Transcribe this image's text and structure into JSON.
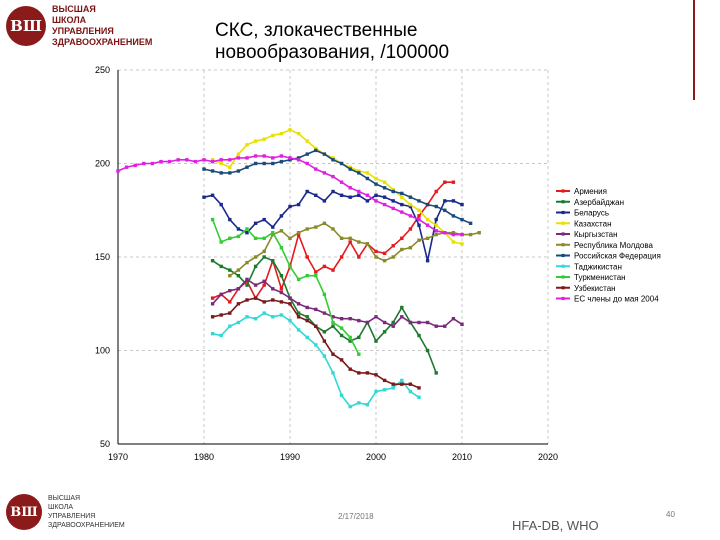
{
  "header": {
    "logo_mark": "ВШ",
    "logo_lines": [
      "ВЫСШАЯ",
      "ШКОЛА",
      "УПРАВЛЕНИЯ",
      "ЗДРАВООХРАНЕНИЕМ"
    ]
  },
  "footer": {
    "logo_mark": "ВШ",
    "logo_lines": [
      "ВЫСШАЯ",
      "ШКОЛА",
      "УПРАВЛЕНИЯ",
      "ЗДРАВООХРАНЕНИЕМ"
    ],
    "date": "2/17/2018",
    "source": "HFA-DB, WHO",
    "page": "40"
  },
  "chart_data": {
    "type": "line",
    "title": "СКС, злокачественные новообразования, /100000",
    "title_lines": [
      "СКС, злокачественные",
      "новообразования, /100000"
    ],
    "xlim": [
      1970,
      2020
    ],
    "ylim": [
      50,
      250
    ],
    "x_ticks": [
      1970,
      1980,
      1990,
      2000,
      2010,
      2020
    ],
    "y_ticks": [
      50,
      100,
      150,
      200,
      250
    ],
    "grid": true,
    "legend_position": "right",
    "series": [
      {
        "name": "Армения",
        "color": "#e41a1c",
        "x": [
          1981,
          1982,
          1983,
          1984,
          1985,
          1986,
          1987,
          1988,
          1989,
          1990,
          1991,
          1992,
          1993,
          1994,
          1995,
          1996,
          1997,
          1998,
          1999,
          2000,
          2001,
          2002,
          2003,
          2004,
          2005,
          2006,
          2007,
          2008,
          2009
        ],
        "y": [
          128,
          130,
          126,
          133,
          137,
          128,
          135,
          148,
          133,
          145,
          162,
          150,
          142,
          145,
          143,
          150,
          158,
          150,
          157,
          153,
          152,
          156,
          160,
          165,
          172,
          178,
          185,
          190,
          190
        ]
      },
      {
        "name": "Азербайджан",
        "color": "#1b7a2e",
        "x": [
          1981,
          1982,
          1983,
          1984,
          1985,
          1986,
          1987,
          1988,
          1989,
          1990,
          1991,
          1992,
          1993,
          1994,
          1995,
          1996,
          1997,
          1998,
          1999,
          2000,
          2001,
          2002,
          2003,
          2004,
          2005,
          2006,
          2007
        ],
        "y": [
          148,
          145,
          143,
          140,
          135,
          145,
          150,
          148,
          140,
          128,
          120,
          118,
          113,
          110,
          113,
          108,
          105,
          107,
          115,
          105,
          110,
          115,
          123,
          115,
          108,
          100,
          88
        ]
      },
      {
        "name": "Беларусь",
        "color": "#1a2a8c",
        "x": [
          1980,
          1981,
          1982,
          1983,
          1984,
          1985,
          1986,
          1987,
          1988,
          1989,
          1990,
          1991,
          1992,
          1993,
          1994,
          1995,
          1996,
          1997,
          1998,
          1999,
          2000,
          2001,
          2002,
          2003,
          2004,
          2005,
          2006,
          2007,
          2008,
          2009,
          2010
        ],
        "y": [
          182,
          183,
          178,
          170,
          165,
          163,
          168,
          170,
          166,
          172,
          177,
          178,
          185,
          183,
          180,
          185,
          183,
          182,
          183,
          180,
          183,
          182,
          180,
          178,
          177,
          167,
          148,
          170,
          180,
          180,
          178
        ]
      },
      {
        "name": "Казахстан",
        "color": "#e8e000",
        "x": [
          1981,
          1982,
          1983,
          1984,
          1985,
          1986,
          1987,
          1988,
          1989,
          1990,
          1991,
          1992,
          1993,
          1994,
          1995,
          1996,
          1997,
          1998,
          1999,
          2000,
          2001,
          2002,
          2003,
          2004,
          2005,
          2006,
          2007,
          2008,
          2009,
          2010
        ],
        "y": [
          202,
          200,
          198,
          205,
          210,
          212,
          213,
          215,
          216,
          218,
          216,
          212,
          208,
          205,
          203,
          200,
          198,
          196,
          195,
          192,
          190,
          186,
          182,
          178,
          175,
          170,
          167,
          163,
          158,
          157
        ]
      },
      {
        "name": "Кыргызстан",
        "color": "#7a2a7a",
        "x": [
          1981,
          1982,
          1983,
          1984,
          1985,
          1986,
          1987,
          1988,
          1989,
          1990,
          1991,
          1992,
          1993,
          1994,
          1995,
          1996,
          1997,
          1998,
          1999,
          2000,
          2001,
          2002,
          2003,
          2004,
          2005,
          2006,
          2007,
          2008,
          2009,
          2010
        ],
        "y": [
          125,
          130,
          132,
          133,
          138,
          135,
          137,
          133,
          131,
          128,
          125,
          123,
          122,
          120,
          118,
          117,
          117,
          116,
          115,
          118,
          115,
          113,
          118,
          115,
          115,
          115,
          113,
          113,
          117,
          114
        ]
      },
      {
        "name": "Республика Молдова",
        "color": "#8a8a2a",
        "x": [
          1983,
          1984,
          1985,
          1986,
          1987,
          1988,
          1989,
          1990,
          1991,
          1992,
          1993,
          1994,
          1995,
          1996,
          1997,
          1998,
          1999,
          2000,
          2001,
          2002,
          2003,
          2004,
          2005,
          2006,
          2007,
          2008,
          2009,
          2010,
          2011,
          2012
        ],
        "y": [
          140,
          143,
          147,
          150,
          153,
          162,
          164,
          160,
          163,
          165,
          166,
          168,
          165,
          160,
          160,
          158,
          157,
          150,
          148,
          150,
          154,
          155,
          159,
          160,
          162,
          163,
          163,
          162,
          162,
          163
        ]
      },
      {
        "name": "Российская Федерация",
        "color": "#1a4a7a",
        "x": [
          1980,
          1981,
          1982,
          1983,
          1984,
          1985,
          1986,
          1987,
          1988,
          1989,
          1990,
          1991,
          1992,
          1993,
          1994,
          1995,
          1996,
          1997,
          1998,
          1999,
          2000,
          2001,
          2002,
          2003,
          2004,
          2005,
          2006,
          2007,
          2008,
          2009,
          2010,
          2011
        ],
        "y": [
          197,
          196,
          195,
          195,
          196,
          198,
          200,
          200,
          200,
          201,
          202,
          203,
          205,
          207,
          205,
          202,
          200,
          197,
          195,
          192,
          189,
          187,
          185,
          184,
          182,
          180,
          178,
          177,
          175,
          172,
          170,
          168
        ]
      },
      {
        "name": "Таджикистан",
        "color": "#30d8d8",
        "x": [
          1981,
          1982,
          1983,
          1984,
          1985,
          1986,
          1987,
          1988,
          1989,
          1990,
          1991,
          1992,
          1993,
          1994,
          1995,
          1996,
          1997,
          1998,
          1999,
          2000,
          2001,
          2002,
          2003,
          2004,
          2005
        ],
        "y": [
          109,
          108,
          113,
          115,
          118,
          117,
          120,
          118,
          119,
          116,
          111,
          107,
          103,
          97,
          88,
          76,
          70,
          72,
          71,
          78,
          79,
          80,
          84,
          78,
          75
        ]
      },
      {
        "name": "Туркменистан",
        "color": "#32cd32",
        "x": [
          1981,
          1982,
          1983,
          1984,
          1985,
          1986,
          1987,
          1988,
          1989,
          1990,
          1991,
          1992,
          1993,
          1994,
          1995,
          1996,
          1997,
          1998
        ],
        "y": [
          170,
          158,
          160,
          161,
          165,
          160,
          160,
          163,
          155,
          145,
          138,
          140,
          140,
          130,
          115,
          112,
          107,
          98
        ]
      },
      {
        "name": "Узбекистан",
        "color": "#7a1a1a",
        "x": [
          1981,
          1982,
          1983,
          1984,
          1985,
          1986,
          1987,
          1988,
          1989,
          1990,
          1991,
          1992,
          1993,
          1994,
          1995,
          1996,
          1997,
          1998,
          1999,
          2000,
          2001,
          2002,
          2003,
          2004,
          2005
        ],
        "y": [
          118,
          119,
          120,
          125,
          127,
          128,
          126,
          127,
          126,
          125,
          118,
          116,
          113,
          105,
          98,
          95,
          90,
          88,
          88,
          87,
          84,
          82,
          82,
          82,
          80
        ]
      },
      {
        "name": "ЕС члены до мая 2004",
        "color": "#e020e0",
        "x": [
          1970,
          1971,
          1972,
          1973,
          1974,
          1975,
          1976,
          1977,
          1978,
          1979,
          1980,
          1981,
          1982,
          1983,
          1984,
          1985,
          1986,
          1987,
          1988,
          1989,
          1990,
          1991,
          1992,
          1993,
          1994,
          1995,
          1996,
          1997,
          1998,
          1999,
          2000,
          2001,
          2002,
          2003,
          2004,
          2005,
          2006,
          2007,
          2008,
          2009,
          2010
        ],
        "y": [
          196,
          198,
          199,
          200,
          200,
          201,
          201,
          202,
          202,
          201,
          202,
          201,
          202,
          202,
          203,
          203,
          204,
          204,
          203,
          204,
          203,
          202,
          200,
          197,
          195,
          193,
          190,
          187,
          185,
          183,
          180,
          178,
          176,
          174,
          172,
          170,
          167,
          164,
          163,
          162,
          162
        ]
      }
    ]
  },
  "colors": {
    "axis": "#000000",
    "grid": "#c8c8c8",
    "brand": "#8b1a1a"
  }
}
